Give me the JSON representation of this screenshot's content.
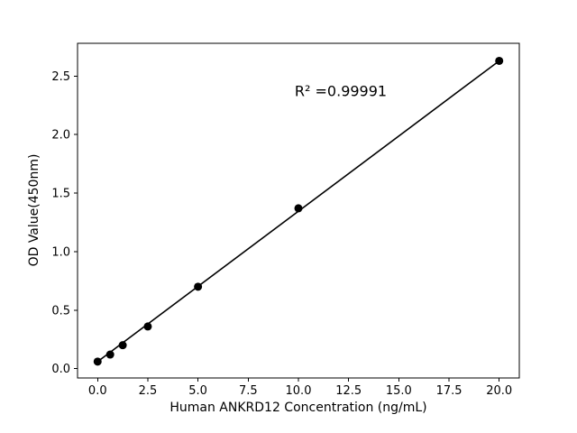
{
  "chart_data": {
    "type": "scatter",
    "title": "",
    "xlabel": "Human ANKRD12 Concentration (ng/mL)",
    "ylabel": "OD Value(450nm)",
    "annotation": "R² =0.99991",
    "x": [
      0,
      0.625,
      1.25,
      2.5,
      5,
      10,
      20
    ],
    "y": [
      0.06,
      0.12,
      0.2,
      0.36,
      0.7,
      1.37,
      2.63
    ],
    "fit_line": {
      "x": [
        0,
        20
      ],
      "y": [
        0.06,
        2.63
      ]
    },
    "xlim": [
      -1,
      21
    ],
    "ylim": [
      -0.08,
      2.78
    ],
    "xticks": [
      0,
      2.5,
      5,
      7.5,
      10,
      12.5,
      15,
      17.5,
      20
    ],
    "xtick_labels": [
      "0.0",
      "2.5",
      "5.0",
      "7.5",
      "10.0",
      "12.5",
      "15.0",
      "17.5",
      "20.0"
    ],
    "yticks": [
      0,
      0.5,
      1.0,
      1.5,
      2.0,
      2.5
    ],
    "ytick_labels": [
      "0.0",
      "0.5",
      "1.0",
      "1.5",
      "2.0",
      "2.5"
    ],
    "grid": false,
    "legend": "none",
    "marker_color": "#000000",
    "line_color": "#000000",
    "background": "#ffffff"
  }
}
